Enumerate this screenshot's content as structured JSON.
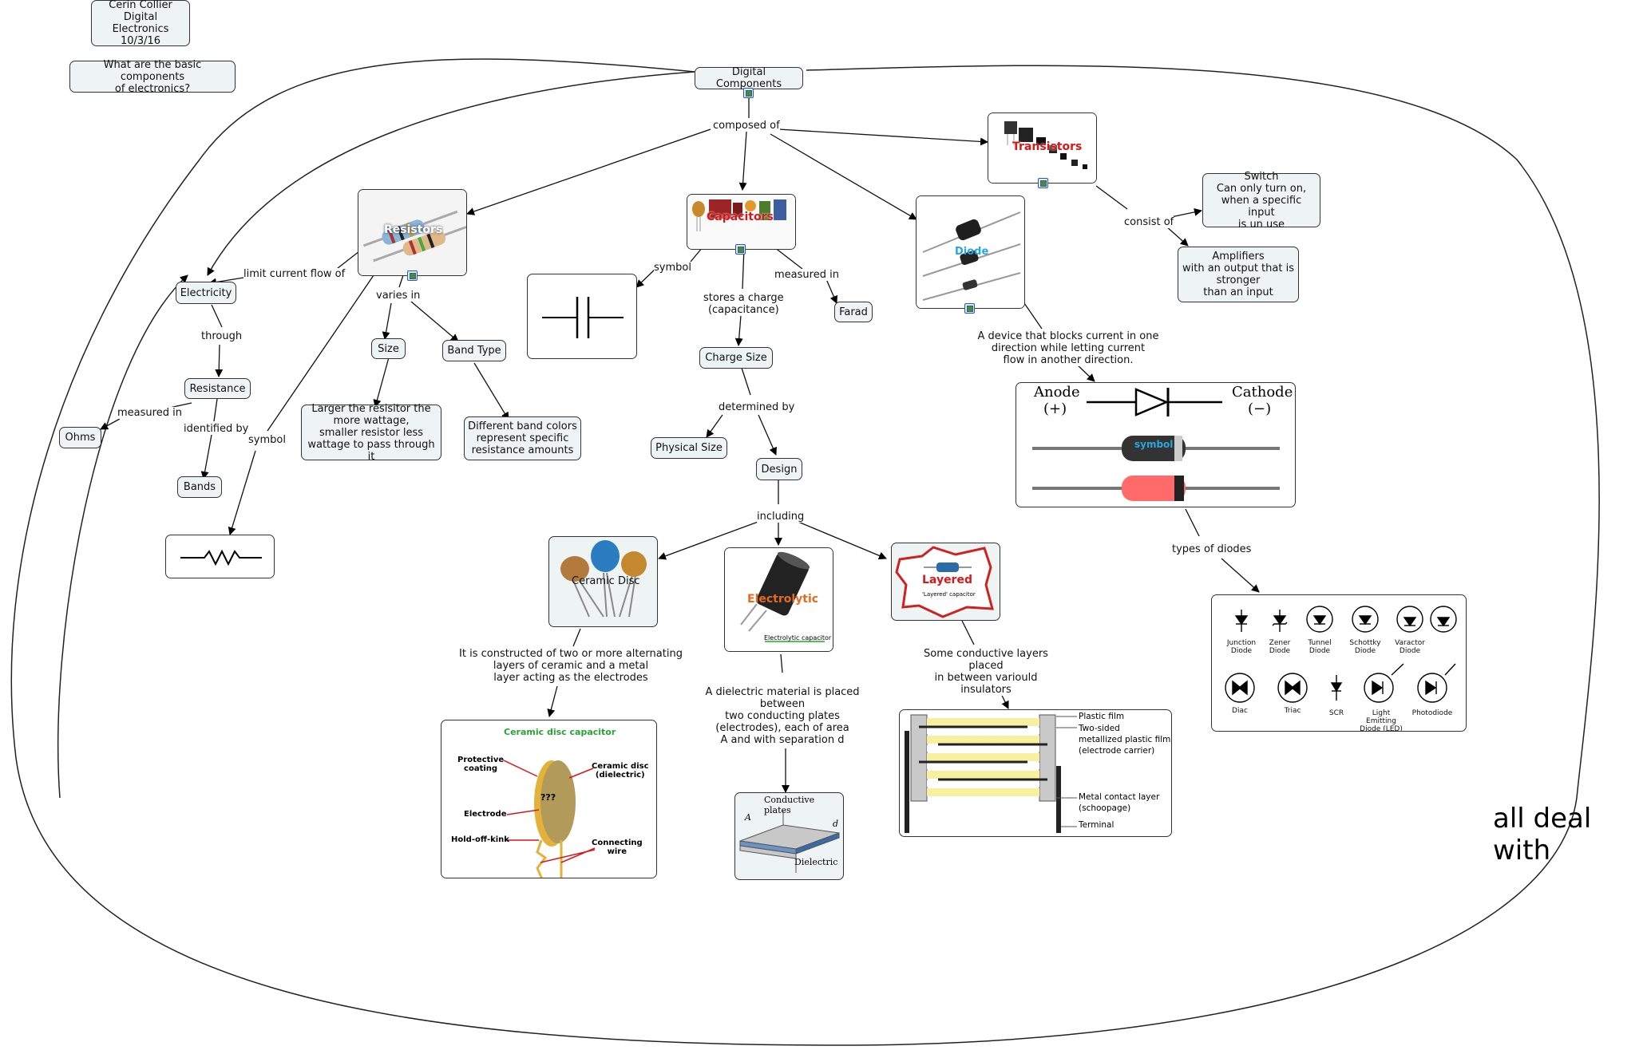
{
  "header": {
    "author_card": "Cerin Collier\nDigital Electronics\n10/3/16",
    "question": "What are the basic components\nof electronics?"
  },
  "root": "Digital Components",
  "side_text": "all deal with",
  "links": {
    "composed_of": "composed of",
    "limit_current": "limit current flow of",
    "through": "through",
    "measured_in_ohms": "measured in",
    "identified_by": "identified by",
    "varies_in": "varies in",
    "symbol_resistor": "symbol",
    "symbol_cap": "symbol",
    "stores_charge": "stores a charge\n(capacitance)",
    "measured_in_farad": "measured in",
    "determined_by": "determined by",
    "including": "including",
    "consist_of": "consist of",
    "types_of_diodes": "types of diodes"
  },
  "nodes": {
    "electricity": "Electricity",
    "resistance": "Resistance",
    "ohms": "Ohms",
    "bands": "Bands",
    "size": "Size",
    "band_type": "Band Type",
    "size_desc": "Larger the resisitor the\nmore wattage,\nsmaller resistor less\nwattage to pass through it",
    "band_desc": "Different band colors\nrepresent specific\nresistance amounts",
    "farad": "Farad",
    "charge_size": "Charge Size",
    "physical_size": "Physical Size",
    "design": "Design",
    "switch": "Switch\nCan only turn on,\nwhen a specific input\nis un use",
    "amplifiers": "Amplifiers\nwith an output that is\nstronger\nthan an input"
  },
  "image_labels": {
    "resistors": "Resistors",
    "capacitors": "Capacitors",
    "transistors": "Transistors",
    "diode": "Diode",
    "ceramic_disc": "Ceramic Disc",
    "electrolytic": "Electrolytic",
    "electrolytic_caption": "Electrolytic capacitor",
    "layered": "Layered",
    "layered_caption": "'Layered' capacitor",
    "diode_symbol_overlay": "symbol",
    "anode": "Anode",
    "anode_sign": "(+)",
    "cathode": "Cathode",
    "cathode_sign": "(−)"
  },
  "texts": {
    "diode_desc": "A device that blocks current in one\ndirection while letting current\nflow in another direction.",
    "ceramic_desc": "It is constructed of two or more alternating\nlayers of ceramic and a metal\nlayer acting as the electrodes",
    "electrolytic_desc": "A dielectric material is placed between\ntwo conducting plates\n(electrodes), each of area\nA and with separation d",
    "layered_desc": "Some conductive layers placed\nin between variould insulators"
  },
  "ceramic_diagram": {
    "title": "Ceramic disc capacitor",
    "protective": "Protective\ncoating",
    "disc": "Ceramic disc\n(dielectric)",
    "electrode": "Electrode",
    "kink": "Hold-off-kink",
    "wire": "Connecting\nwire",
    "marks": "???"
  },
  "plate_diagram": {
    "plates": "Conductive plates",
    "dielectric": "Dielectric",
    "a": "A",
    "d": "d"
  },
  "film_diagram": {
    "plastic": "Plastic film",
    "two_sided": "Two-sided\nmetallized plastic film\n(electrode carrier)",
    "metal_contact": "Metal contact layer\n(schoopage)",
    "terminal": "Terminal"
  },
  "diode_types": [
    "Junction\nDiode",
    "Zener\nDiode",
    "Tunnel\nDiode",
    "Schottky\nDiode",
    "Varactor\nDiode",
    "Diac",
    "Triac",
    "SCR",
    "Light Emitting\nDiode (LED)",
    "Photodiode"
  ]
}
